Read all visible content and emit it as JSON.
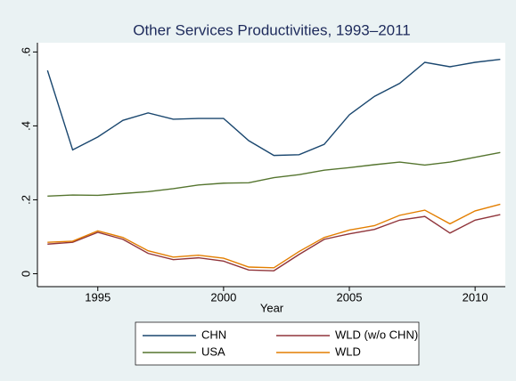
{
  "chart_data": {
    "type": "line",
    "title": "Other Services Productivities, 1993–2011",
    "x_label": "Year",
    "x": [
      1993,
      1994,
      1995,
      1996,
      1997,
      1998,
      1999,
      2000,
      2001,
      2002,
      2003,
      2004,
      2005,
      2006,
      2007,
      2008,
      2009,
      2010,
      2011
    ],
    "series": [
      {
        "name": "CHN",
        "color": "#1a476f",
        "values": [
          0.55,
          0.335,
          0.37,
          0.415,
          0.435,
          0.418,
          0.42,
          0.42,
          0.36,
          0.32,
          0.322,
          0.35,
          0.43,
          0.48,
          0.515,
          0.572,
          0.56,
          0.572,
          0.58
        ]
      },
      {
        "name": "WLD (w/o CHN)",
        "color": "#90353b",
        "values": [
          0.08,
          0.085,
          0.112,
          0.093,
          0.055,
          0.038,
          0.043,
          0.034,
          0.01,
          0.008,
          0.052,
          0.093,
          0.108,
          0.12,
          0.145,
          0.155,
          0.11,
          0.145,
          0.16
        ]
      },
      {
        "name": "USA",
        "color": "#55752f",
        "values": [
          0.21,
          0.213,
          0.212,
          0.217,
          0.222,
          0.23,
          0.24,
          0.245,
          0.246,
          0.26,
          0.268,
          0.28,
          0.287,
          0.295,
          0.302,
          0.294,
          0.302,
          0.315,
          0.328
        ]
      },
      {
        "name": "WLD",
        "color": "#e37e00",
        "values": [
          0.085,
          0.088,
          0.116,
          0.098,
          0.062,
          0.045,
          0.05,
          0.042,
          0.018,
          0.016,
          0.06,
          0.098,
          0.118,
          0.13,
          0.158,
          0.172,
          0.135,
          0.17,
          0.188
        ]
      }
    ],
    "xlim": [
      1992.6,
      2011.2
    ],
    "xticks": [
      1995,
      2000,
      2005,
      2010
    ],
    "ylim": [
      -0.035,
      0.625
    ],
    "yticks": [
      0,
      {
        "value": 0.2,
        "label": ".2"
      },
      {
        "value": 0.4,
        "label": ".4"
      },
      {
        "value": 0.6,
        "label": ".6"
      }
    ],
    "grid": false
  }
}
